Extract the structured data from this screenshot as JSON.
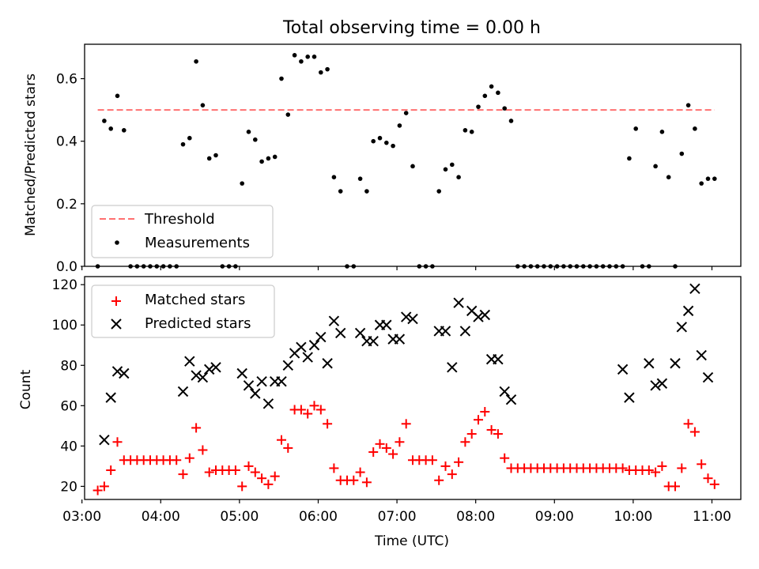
{
  "chart_data": [
    {
      "type": "scatter",
      "title": "Total observing time = 0.00 h",
      "xlabel": "",
      "ylabel": "Matched/Predicted stars",
      "xlim": [
        "03:02",
        "11:22"
      ],
      "ylim": [
        0,
        0.71
      ],
      "yticks": [
        0.0,
        0.2,
        0.4,
        0.6
      ],
      "ytick_labels": [
        "0.0",
        "0.2",
        "0.4",
        "0.6"
      ],
      "grid": false,
      "legend": {
        "placement": "lower-left",
        "entries": [
          "Threshold",
          "Measurements"
        ]
      },
      "series": [
        {
          "name": "Threshold",
          "kind": "dashed-line",
          "color": "#ff7070",
          "x": [
            "03:12",
            "11:02"
          ],
          "y": [
            0.5,
            0.5
          ]
        },
        {
          "name": "Measurements",
          "kind": "points",
          "color": "#000000",
          "x": [
            "03:12",
            "03:17",
            "03:22",
            "03:27",
            "03:32",
            "03:37",
            "03:42",
            "03:47",
            "03:52",
            "03:57",
            "04:02",
            "04:07",
            "04:12",
            "04:17",
            "04:22",
            "04:27",
            "04:32",
            "04:37",
            "04:42",
            "04:47",
            "04:52",
            "04:57",
            "05:02",
            "05:07",
            "05:12",
            "05:17",
            "05:22",
            "05:27",
            "05:32",
            "05:37",
            "05:42",
            "05:47",
            "05:52",
            "05:57",
            "06:02",
            "06:07",
            "06:12",
            "06:17",
            "06:22",
            "06:27",
            "06:32",
            "06:37",
            "06:42",
            "06:47",
            "06:52",
            "06:57",
            "07:02",
            "07:07",
            "07:12",
            "07:17",
            "07:22",
            "07:27",
            "07:32",
            "07:37",
            "07:42",
            "07:47",
            "07:52",
            "07:57",
            "08:02",
            "08:07",
            "08:12",
            "08:17",
            "08:22",
            "08:27",
            "08:32",
            "08:37",
            "08:42",
            "08:47",
            "08:52",
            "08:57",
            "09:02",
            "09:07",
            "09:12",
            "09:17",
            "09:22",
            "09:27",
            "09:32",
            "09:37",
            "09:42",
            "09:47",
            "09:52",
            "09:57",
            "10:02",
            "10:07",
            "10:12",
            "10:17",
            "10:22",
            "10:27",
            "10:32",
            "10:37",
            "10:42",
            "10:47",
            "10:52",
            "10:57",
            "11:02"
          ],
          "y": [
            0.0,
            0.465,
            0.44,
            0.545,
            0.435,
            0.0,
            0.0,
            0.0,
            0.0,
            0.0,
            0.0,
            0.0,
            0.0,
            0.39,
            0.41,
            0.655,
            0.515,
            0.345,
            0.355,
            0.0,
            0.0,
            0.0,
            0.265,
            0.43,
            0.405,
            0.335,
            0.345,
            0.35,
            0.6,
            0.485,
            0.675,
            0.655,
            0.67,
            0.67,
            0.62,
            0.63,
            0.285,
            0.24,
            0.0,
            0.0,
            0.28,
            0.24,
            0.4,
            0.41,
            0.395,
            0.385,
            0.45,
            0.49,
            0.32,
            0.0,
            0.0,
            0.0,
            0.24,
            0.31,
            0.325,
            0.285,
            0.435,
            0.43,
            0.51,
            0.545,
            0.575,
            0.555,
            0.505,
            0.465,
            0.0,
            0.0,
            0.0,
            0.0,
            0.0,
            0.0,
            0.0,
            0.0,
            0.0,
            0.0,
            0.0,
            0.0,
            0.0,
            0.0,
            0.0,
            0.0,
            0.0,
            0.345,
            0.44,
            0.0,
            0.0,
            0.32,
            0.43,
            0.285,
            0.0,
            0.36,
            0.515,
            0.44,
            0.265,
            0.28,
            0.28
          ]
        }
      ]
    },
    {
      "type": "scatter",
      "title": "",
      "xlabel": "Time (UTC)",
      "ylabel": "Count",
      "xlim": [
        "03:02",
        "11:22"
      ],
      "ylim": [
        13.5,
        124
      ],
      "yticks": [
        20,
        40,
        60,
        80,
        100,
        120
      ],
      "ytick_labels": [
        "20",
        "40",
        "60",
        "80",
        "100",
        "120"
      ],
      "xticks": [
        "03:00",
        "04:00",
        "05:00",
        "06:00",
        "07:00",
        "08:00",
        "09:00",
        "10:00",
        "11:00"
      ],
      "grid": false,
      "legend": {
        "placement": "top-left",
        "entries": [
          "Matched stars",
          "Predicted stars"
        ]
      },
      "series": [
        {
          "name": "Matched stars",
          "marker": "plus",
          "color": "#ff0000",
          "x": [
            "03:12",
            "03:17",
            "03:22",
            "03:27",
            "03:32",
            "03:37",
            "03:42",
            "03:47",
            "03:52",
            "03:57",
            "04:02",
            "04:07",
            "04:12",
            "04:17",
            "04:22",
            "04:27",
            "04:32",
            "04:37",
            "04:42",
            "04:47",
            "04:52",
            "04:57",
            "05:02",
            "05:07",
            "05:12",
            "05:17",
            "05:22",
            "05:27",
            "05:32",
            "05:37",
            "05:42",
            "05:47",
            "05:52",
            "05:57",
            "06:02",
            "06:07",
            "06:12",
            "06:17",
            "06:22",
            "06:27",
            "06:32",
            "06:37",
            "06:42",
            "06:47",
            "06:52",
            "06:57",
            "07:02",
            "07:07",
            "07:12",
            "07:17",
            "07:22",
            "07:27",
            "07:32",
            "07:37",
            "07:42",
            "07:47",
            "07:52",
            "07:57",
            "08:02",
            "08:07",
            "08:12",
            "08:17",
            "08:22",
            "08:27",
            "08:32",
            "08:37",
            "08:42",
            "08:47",
            "08:52",
            "08:57",
            "09:02",
            "09:07",
            "09:12",
            "09:17",
            "09:22",
            "09:27",
            "09:32",
            "09:37",
            "09:42",
            "09:47",
            "09:52",
            "09:57",
            "10:02",
            "10:07",
            "10:12",
            "10:17",
            "10:22",
            "10:27",
            "10:32",
            "10:37",
            "10:42",
            "10:47",
            "10:52",
            "10:57",
            "11:02"
          ],
          "y": [
            18,
            20,
            28,
            42,
            33,
            33,
            33,
            33,
            33,
            33,
            33,
            33,
            33,
            26,
            34,
            49,
            38,
            27,
            28,
            28,
            28,
            28,
            20,
            30,
            27,
            24,
            21,
            25,
            43,
            39,
            58,
            58,
            56,
            60,
            58,
            51,
            29,
            23,
            23,
            23,
            27,
            22,
            37,
            41,
            39,
            36,
            42,
            51,
            33,
            33,
            33,
            33,
            23,
            30,
            26,
            32,
            42,
            46,
            53,
            57,
            48,
            46,
            34,
            29,
            29,
            29,
            29,
            29,
            29,
            29,
            29,
            29,
            29,
            29,
            29,
            29,
            29,
            29,
            29,
            29,
            29,
            28,
            28,
            28,
            28,
            27,
            30,
            20,
            20,
            29,
            51,
            47,
            31,
            24,
            21
          ]
        },
        {
          "name": "Predicted stars",
          "marker": "x",
          "color": "#000000",
          "x": [
            "03:17",
            "03:22",
            "03:27",
            "03:32",
            "04:17",
            "04:22",
            "04:27",
            "04:32",
            "04:37",
            "04:42",
            "05:02",
            "05:07",
            "05:12",
            "05:17",
            "05:22",
            "05:27",
            "05:32",
            "05:37",
            "05:42",
            "05:47",
            "05:52",
            "05:57",
            "06:02",
            "06:07",
            "06:12",
            "06:17",
            "06:32",
            "06:37",
            "06:42",
            "06:47",
            "06:52",
            "06:57",
            "07:02",
            "07:07",
            "07:12",
            "07:32",
            "07:37",
            "07:42",
            "07:47",
            "07:52",
            "07:57",
            "08:02",
            "08:07",
            "08:12",
            "08:17",
            "08:22",
            "08:27",
            "09:52",
            "09:57",
            "10:12",
            "10:17",
            "10:22",
            "10:32",
            "10:37",
            "10:42",
            "10:47",
            "10:52",
            "10:57"
          ],
          "y": [
            43,
            64,
            77,
            76,
            67,
            82,
            75,
            74,
            78,
            79,
            76,
            70,
            66,
            72,
            61,
            72,
            72,
            80,
            86,
            89,
            84,
            90,
            94,
            81,
            102,
            96,
            96,
            92,
            92,
            100,
            100,
            93,
            93,
            104,
            103,
            97,
            97,
            79,
            111,
            97,
            107,
            104,
            105,
            83,
            83,
            67,
            63,
            78,
            64,
            81,
            70,
            71,
            81,
            99,
            107,
            118,
            85,
            74
          ]
        }
      ]
    }
  ]
}
